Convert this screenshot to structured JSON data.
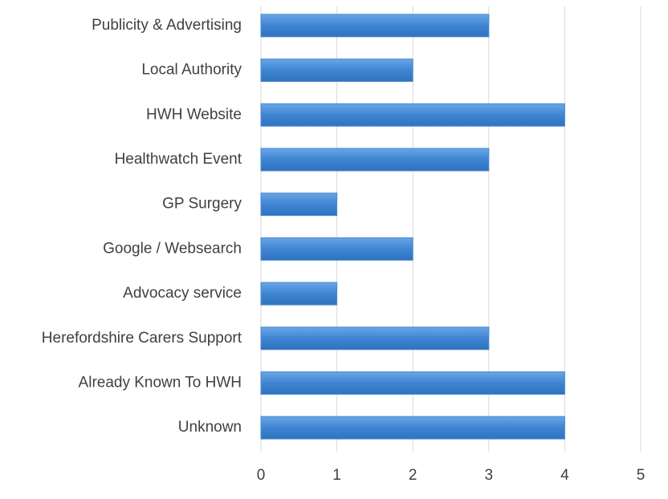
{
  "chart_data": {
    "type": "barh",
    "categories": [
      "Publicity & Advertising",
      "Local Authority",
      "HWH Website",
      "Healthwatch Event",
      "GP Surgery",
      "Google / Websearch",
      "Advocacy service",
      "Herefordshire Carers Support",
      "Already Known To HWH",
      "Unknown"
    ],
    "values": [
      3,
      2,
      4,
      3,
      1,
      2,
      1,
      3,
      4,
      4
    ],
    "color": "#4a8bd3",
    "xlim": [
      0,
      5
    ],
    "xticks": [
      0,
      1,
      2,
      3,
      4,
      5
    ],
    "grid": true
  }
}
